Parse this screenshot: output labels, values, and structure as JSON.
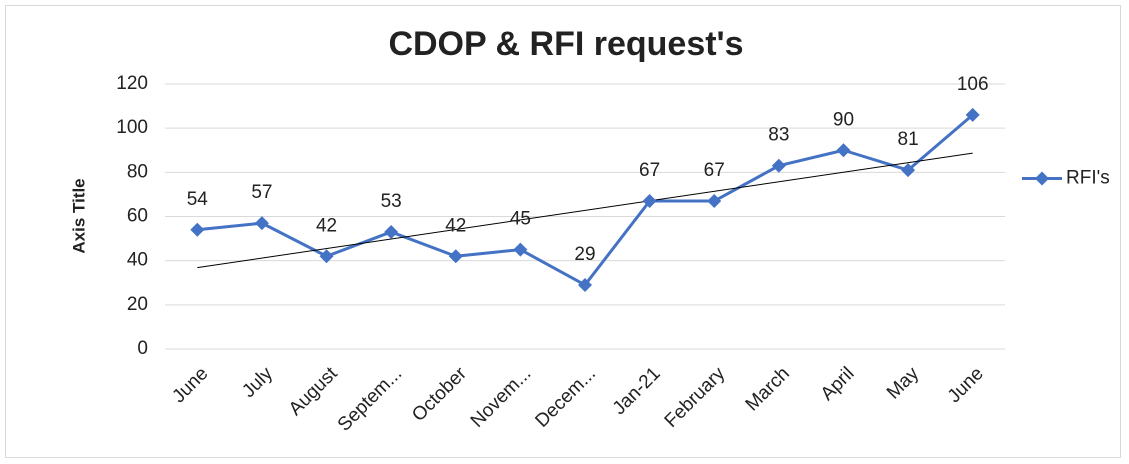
{
  "chart_data": {
    "type": "line",
    "title": "CDOP & RFI request's",
    "y_axis_label": "Axis Title",
    "categories": [
      "June",
      "July",
      "August",
      "Septem...",
      "October",
      "Novem...",
      "Decem...",
      "Jan-21",
      "February",
      "March",
      "April",
      "May",
      "June"
    ],
    "series": [
      {
        "name": "RFI's",
        "color": "#4472c4",
        "values": [
          54,
          57,
          42,
          53,
          42,
          45,
          29,
          67,
          67,
          83,
          90,
          81,
          106
        ]
      }
    ],
    "ylim": [
      0,
      120
    ],
    "yticks": [
      0,
      20,
      40,
      60,
      80,
      100,
      120
    ],
    "grid": true,
    "legend": "right",
    "data_labels": true,
    "trendline": "linear",
    "trendline_color": "#000000"
  }
}
